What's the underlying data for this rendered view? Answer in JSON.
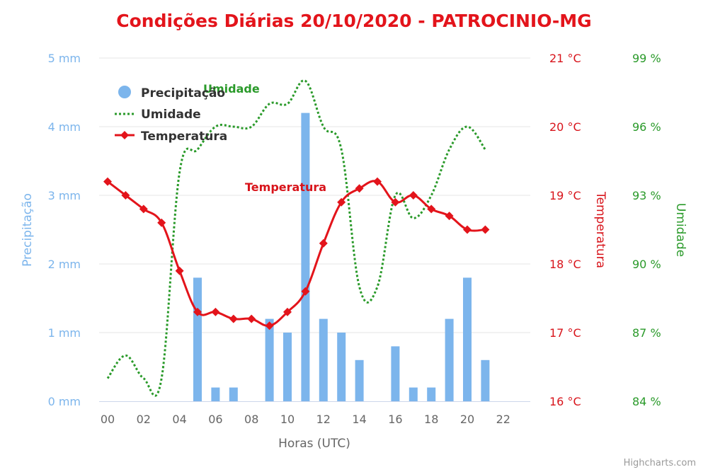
{
  "title": "Condições Diárias 20/10/2020 - PATROCINIO-MG",
  "credits": "Highcharts.com",
  "colors": {
    "precipitation": "#7cb5ec",
    "temperature": "#e3141b",
    "humidity": "#2a9a2a",
    "grid": "#e6e6e6",
    "title": "#e3141b"
  },
  "legend": {
    "items": [
      {
        "label": "Precipitação",
        "symbol": "circle",
        "color": "#7cb5ec"
      },
      {
        "label": "Umidade",
        "symbol": "dotted-line",
        "color": "#2a9a2a"
      },
      {
        "label": "Temperatura",
        "symbol": "line-diamond",
        "color": "#e3141b"
      }
    ]
  },
  "axes": {
    "x": {
      "title": "Horas (UTC)",
      "ticks": [
        "00",
        "02",
        "04",
        "06",
        "08",
        "10",
        "12",
        "14",
        "16",
        "18",
        "20",
        "22"
      ]
    },
    "y_precip": {
      "title": "Precipitação",
      "ticks": [
        "0 mm",
        "1 mm",
        "2 mm",
        "3 mm",
        "4 mm",
        "5 mm"
      ]
    },
    "y_temp": {
      "title": "Temperatura",
      "ticks": [
        "16 °C",
        "17 °C",
        "18 °C",
        "19 °C",
        "20 °C",
        "21 °C"
      ]
    },
    "y_hum": {
      "title": "Umidade",
      "ticks": [
        "84 %",
        "87 %",
        "90 %",
        "93 %",
        "96 %",
        "99 %"
      ]
    }
  },
  "series_labels": {
    "temperature": "Temperatura",
    "humidity": "Umidade"
  },
  "chart_data": {
    "type": "bar+line",
    "title": "Condições Diárias 20/10/2020 - PATROCINIO-MG",
    "xlabel": "Horas (UTC)",
    "x": [
      0,
      1,
      2,
      3,
      4,
      5,
      6,
      7,
      8,
      9,
      10,
      11,
      12,
      13,
      14,
      15,
      16,
      17,
      18,
      19,
      20,
      21
    ],
    "x_tick_labels": [
      "00",
      "02",
      "04",
      "06",
      "08",
      "10",
      "12",
      "14",
      "16",
      "18",
      "20",
      "22"
    ],
    "xlim": [
      0,
      23
    ],
    "series": [
      {
        "name": "Precipitação",
        "type": "bar",
        "unit": "mm",
        "axis": "left",
        "ylim": [
          0,
          5
        ],
        "values": [
          0,
          0,
          0,
          0,
          0,
          1.8,
          0.2,
          0.2,
          0,
          1.2,
          1.0,
          4.2,
          1.2,
          1.0,
          0.6,
          0,
          0.8,
          0.2,
          0.2,
          1.2,
          1.8,
          0.6
        ]
      },
      {
        "name": "Umidade",
        "type": "line",
        "style": "dotted",
        "unit": "%",
        "axis": "right-outer",
        "ylim": [
          84,
          99
        ],
        "values": [
          85,
          86,
          85,
          85,
          94,
          95,
          96,
          96,
          96,
          97,
          97,
          98,
          96,
          95,
          89,
          89,
          93,
          92,
          93,
          95,
          96,
          95
        ]
      },
      {
        "name": "Temperatura",
        "type": "line",
        "marker": "diamond",
        "unit": "°C",
        "axis": "right-inner",
        "ylim": [
          16,
          21
        ],
        "values": [
          19.2,
          19.0,
          18.8,
          18.6,
          17.9,
          17.3,
          17.3,
          17.2,
          17.2,
          17.1,
          17.3,
          17.6,
          18.3,
          18.9,
          19.1,
          19.2,
          18.9,
          19.0,
          18.8,
          18.7,
          18.5,
          18.5
        ]
      }
    ],
    "ylabel_left": "Precipitação",
    "ylabel_right": [
      "Temperatura",
      "Umidade"
    ],
    "grid": true,
    "legend_position": "top-left inside plot"
  }
}
